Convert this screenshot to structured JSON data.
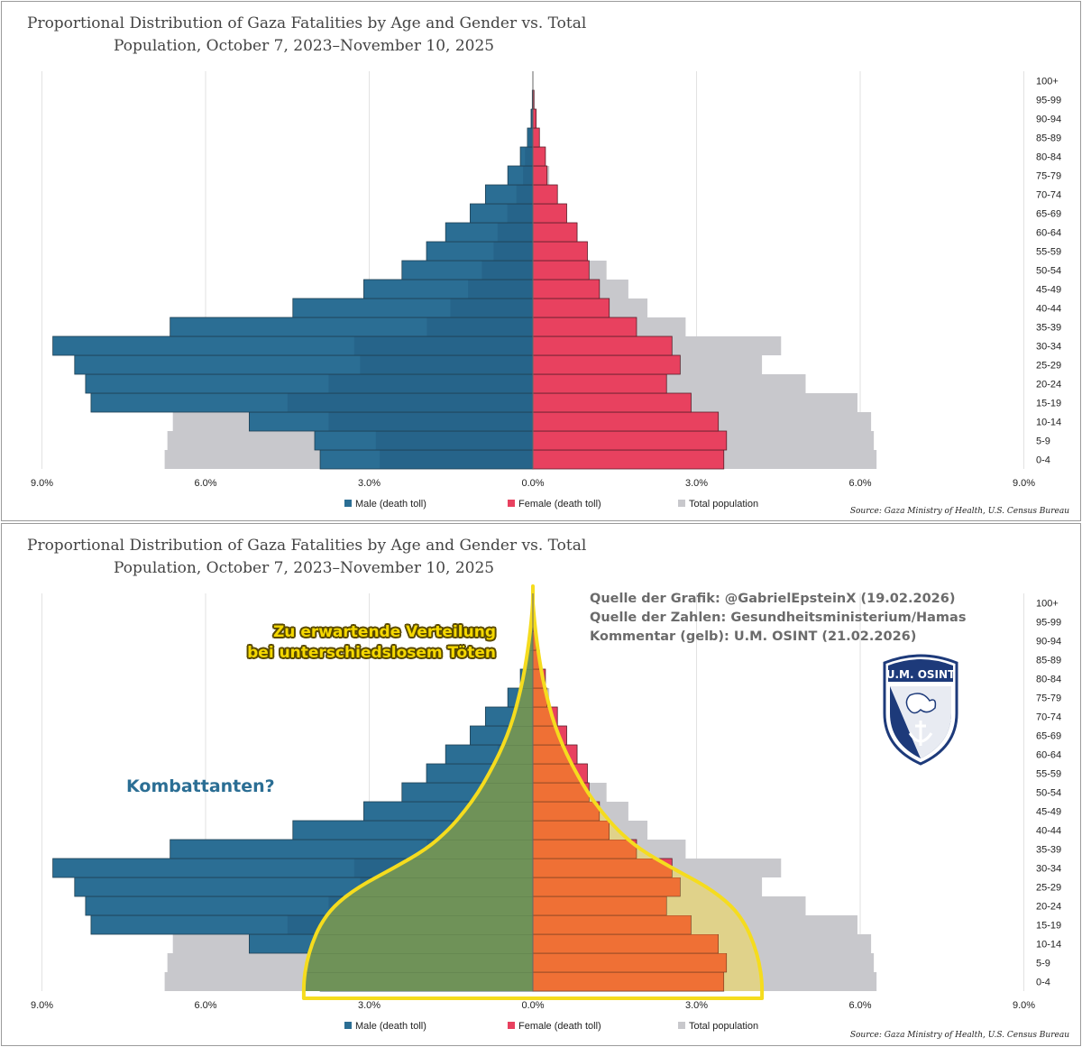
{
  "chart_data": [
    {
      "type": "bar",
      "subtype": "population-pyramid",
      "title_line1": "Proportional Distribution of Gaza Fatalities by Age and Gender vs. Total",
      "title_line2": "Population, October 7, 2023–November 10, 2025",
      "xlim": [
        -9,
        9
      ],
      "ticks": [
        {
          "value": -9,
          "label": "9.0%"
        },
        {
          "value": -6,
          "label": "6.0%"
        },
        {
          "value": -3,
          "label": "3.0%"
        },
        {
          "value": 0,
          "label": "0.0%"
        },
        {
          "value": 3,
          "label": "3.0%"
        },
        {
          "value": 6,
          "label": "6.0%"
        },
        {
          "value": 9,
          "label": "9.0%"
        }
      ],
      "categories": [
        "0-4",
        "5-9",
        "10-14",
        "15-19",
        "20-24",
        "25-29",
        "30-34",
        "35-39",
        "40-44",
        "45-49",
        "50-54",
        "55-59",
        "60-64",
        "65-69",
        "70-74",
        "75-79",
        "80-84",
        "85-89",
        "90-94",
        "95-99",
        "100+"
      ],
      "series": [
        {
          "name": "Male (death toll)",
          "color": "#2b6e94",
          "values": [
            3.9,
            4.0,
            5.2,
            8.1,
            8.2,
            8.4,
            8.8,
            6.65,
            4.4,
            3.1,
            2.4,
            1.95,
            1.6,
            1.15,
            0.87,
            0.46,
            0.23,
            0.1,
            0.03,
            0.01,
            0.0
          ]
        },
        {
          "name": "Female (death toll)",
          "color": "#e8415f",
          "values": [
            3.5,
            3.55,
            3.4,
            2.9,
            2.45,
            2.7,
            2.55,
            1.9,
            1.4,
            1.22,
            1.03,
            1.0,
            0.81,
            0.62,
            0.45,
            0.26,
            0.23,
            0.12,
            0.06,
            0.02,
            0.0
          ]
        },
        {
          "name": "Total population (male side)",
          "color": "#c8c8cc",
          "values": [
            6.75,
            6.7,
            6.6,
            6.25,
            5.2,
            4.4,
            4.55,
            2.7,
            2.1,
            1.65,
            1.3,
            1.0,
            0.9,
            0.65,
            0.42,
            0.25,
            0.2,
            0.1,
            0.05,
            0.02,
            0.0
          ]
        },
        {
          "name": "Total population (female side)",
          "color": "#c8c8cc",
          "values": [
            6.3,
            6.25,
            6.2,
            5.95,
            5.0,
            4.2,
            4.55,
            2.8,
            2.1,
            1.75,
            1.35,
            1.0,
            0.82,
            0.62,
            0.45,
            0.3,
            0.22,
            0.12,
            0.06,
            0.03,
            0.0
          ]
        }
      ],
      "legend": [
        "Male (death toll)",
        "Female (death toll)",
        "Total population"
      ],
      "source": "Source: Gaza Ministry of Health, U.S. Census Bureau"
    },
    {
      "type": "bar",
      "subtype": "population-pyramid-annotated",
      "title_line1": "Proportional Distribution of Gaza Fatalities by Age and Gender vs. Total",
      "title_line2": "Population, October 7, 2023–November 10, 2025",
      "legend": [
        "Male (death toll)",
        "Female (death toll)",
        "Total population"
      ],
      "source": "Source: Gaza Ministry of Health, U.S. Census Bureau",
      "expected_distribution_halfwidth": [
        4.2,
        4.15,
        4.05,
        3.9,
        3.65,
        3.2,
        2.55,
        1.95,
        1.55,
        1.25,
        1.0,
        0.8,
        0.62,
        0.47,
        0.35,
        0.26,
        0.18,
        0.12,
        0.07,
        0.03,
        0.0
      ]
    }
  ],
  "annotations": {
    "source_lines": [
      "Quelle der Grafik: @GabrielEpsteinX (19.02.2026)",
      "Quelle der Zahlen: Gesundheitsministerium/Hamas",
      "Kommentar (gelb): U.M. OSINT (21.02.2026)"
    ],
    "expected_line1": "Zu erwartende Verteilung",
    "expected_line2": "bei unterschiedslosem Töten",
    "combatants": "Kombattanten?",
    "logo_text": "U.M. OSINT"
  },
  "colors": {
    "male": "#2b6e94",
    "female": "#e8415f",
    "population": "#c8c8cc",
    "male_overlay": "#6f9258",
    "female_overlay": "#ef7035",
    "pop_overlay": "#e0d28a",
    "yellow": "#f5dc1e",
    "logo": "#1d3a7a"
  }
}
